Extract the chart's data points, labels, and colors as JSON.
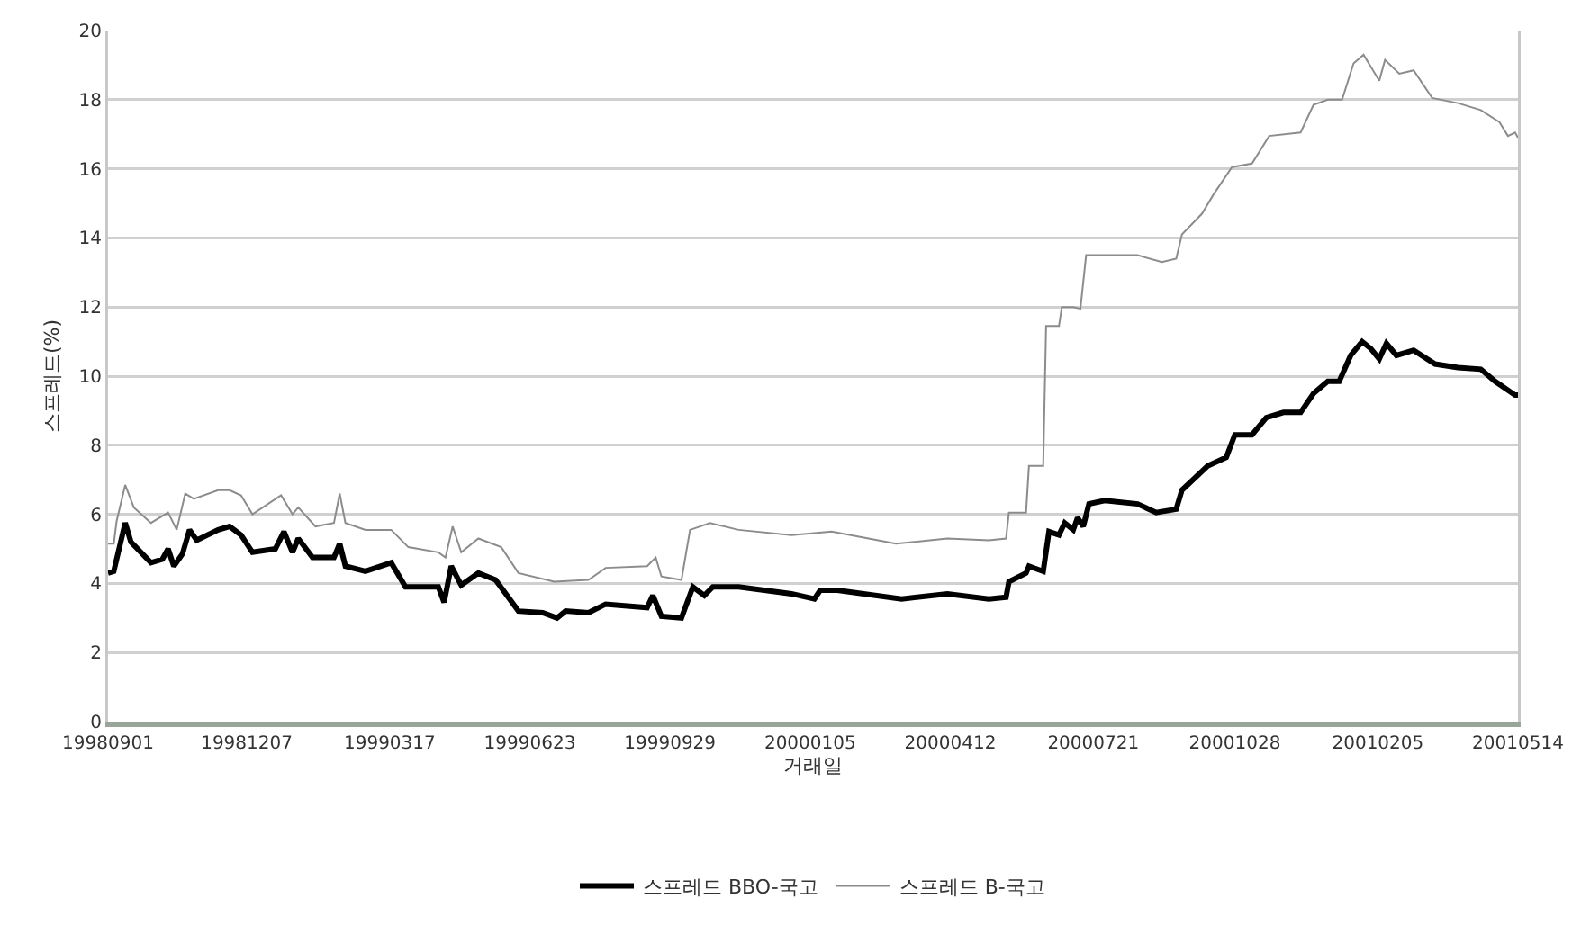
{
  "chart_data": {
    "type": "line",
    "xlabel": "거래일",
    "ylabel": "스프레드(%)",
    "xlim": [
      "1998-09-01",
      "2001-05-14"
    ],
    "xticks": [
      {
        "value": "1998-09-01",
        "label": "19980901"
      },
      {
        "value": "1998-12-07",
        "label": "19981207"
      },
      {
        "value": "1999-03-17",
        "label": "19990317"
      },
      {
        "value": "1999-06-23",
        "label": "19990623"
      },
      {
        "value": "1999-09-29",
        "label": "19990929"
      },
      {
        "value": "2000-01-05",
        "label": "20000105"
      },
      {
        "value": "2000-04-12",
        "label": "20000412"
      },
      {
        "value": "2000-07-21",
        "label": "20000721"
      },
      {
        "value": "2000-10-28",
        "label": "20001028"
      },
      {
        "value": "2001-02-05",
        "label": "20010205"
      },
      {
        "value": "2001-05-14",
        "label": "20010514"
      }
    ],
    "ylim": [
      0,
      20
    ],
    "yticks": [
      0,
      2,
      4,
      6,
      8,
      10,
      12,
      14,
      16,
      18,
      20
    ],
    "grid": "y",
    "legend": "bottom",
    "marker": "none",
    "line_style": "solid",
    "series": [
      {
        "name": "스프레드 BBO-국고",
        "color": "#000000",
        "x": [
          "1998-09-01",
          "1998-09-05",
          "1998-09-13",
          "1998-09-17",
          "1998-10-01",
          "1998-10-09",
          "1998-10-13",
          "1998-10-17",
          "1998-10-23",
          "1998-10-28",
          "1998-11-02",
          "1998-11-17",
          "1998-11-25",
          "1998-12-03",
          "1998-12-11",
          "1998-12-27",
          "1999-01-02",
          "1999-01-08",
          "1999-01-12",
          "1999-01-22",
          "1999-02-06",
          "1999-02-10",
          "1999-02-14",
          "1999-02-28",
          "1999-03-18",
          "1999-03-28",
          "1999-04-20",
          "1999-04-24",
          "1999-04-29",
          "1999-05-06",
          "1999-05-18",
          "1999-05-30",
          "1999-06-15",
          "1999-07-02",
          "1999-07-12",
          "1999-07-18",
          "1999-08-03",
          "1999-08-15",
          "1999-09-13",
          "1999-09-17",
          "1999-09-23",
          "1999-10-07",
          "1999-10-15",
          "1999-10-23",
          "1999-10-29",
          "1999-11-16",
          "1999-12-23",
          "2000-01-08",
          "2000-01-12",
          "2000-01-24",
          "2000-03-09",
          "2000-04-10",
          "2000-05-09",
          "2000-05-21",
          "2000-05-23",
          "2000-06-04",
          "2000-06-06",
          "2000-06-16",
          "2000-06-20",
          "2000-06-27",
          "2000-07-01",
          "2000-07-07",
          "2000-07-10",
          "2000-07-14",
          "2000-07-18",
          "2000-07-29",
          "2000-08-21",
          "2000-09-03",
          "2000-09-17",
          "2000-09-21",
          "2000-10-09",
          "2000-10-22",
          "2000-10-28",
          "2000-11-09",
          "2000-11-19",
          "2000-12-01",
          "2000-12-13",
          "2000-12-22",
          "2001-01-01",
          "2001-01-09",
          "2001-01-17",
          "2001-01-25",
          "2001-01-31",
          "2001-02-06",
          "2001-02-11",
          "2001-02-18",
          "2001-03-02",
          "2001-03-17",
          "2001-04-02",
          "2001-04-18",
          "2001-04-28",
          "2001-05-12",
          "2001-05-14"
        ],
        "values": [
          4.3,
          4.35,
          5.75,
          5.2,
          4.6,
          4.7,
          5.0,
          4.5,
          4.85,
          5.55,
          5.25,
          5.55,
          5.65,
          5.4,
          4.9,
          5.0,
          5.5,
          4.9,
          5.3,
          4.75,
          4.75,
          5.15,
          4.5,
          4.35,
          4.6,
          3.9,
          3.9,
          3.45,
          4.5,
          3.95,
          4.3,
          4.1,
          3.2,
          3.15,
          3.0,
          3.2,
          3.15,
          3.4,
          3.3,
          3.65,
          3.05,
          3.0,
          3.9,
          3.65,
          3.9,
          3.9,
          3.7,
          3.55,
          3.8,
          3.8,
          3.55,
          3.7,
          3.55,
          3.6,
          4.05,
          4.3,
          4.5,
          4.35,
          5.5,
          5.4,
          5.75,
          5.55,
          5.9,
          5.65,
          6.3,
          6.4,
          6.3,
          6.05,
          6.15,
          6.7,
          7.4,
          7.65,
          8.3,
          8.3,
          8.8,
          8.95,
          8.95,
          9.5,
          9.85,
          9.85,
          10.6,
          11.0,
          10.8,
          10.5,
          10.95,
          10.6,
          10.75,
          10.35,
          10.25,
          10.2,
          9.85,
          9.45,
          9.45
        ]
      },
      {
        "name": "스프레드 B-국고",
        "color": "#8c8c8c",
        "x": [
          "1998-09-01",
          "1998-09-05",
          "1998-09-07",
          "1998-09-13",
          "1998-09-19",
          "1998-10-01",
          "1998-10-13",
          "1998-10-19",
          "1998-10-25",
          "1998-10-31",
          "1998-11-17",
          "1998-11-25",
          "1998-12-03",
          "1998-12-11",
          "1998-12-31",
          "1999-01-08",
          "1999-01-12",
          "1999-01-24",
          "1999-02-06",
          "1999-02-10",
          "1999-02-14",
          "1999-02-28",
          "1999-03-18",
          "1999-03-30",
          "1999-04-20",
          "1999-04-25",
          "1999-04-30",
          "1999-05-06",
          "1999-05-18",
          "1999-06-03",
          "1999-06-15",
          "1999-07-10",
          "1999-08-03",
          "1999-08-15",
          "1999-09-13",
          "1999-09-19",
          "1999-09-23",
          "1999-10-07",
          "1999-10-13",
          "1999-10-27",
          "1999-11-16",
          "1999-12-23",
          "2000-01-20",
          "2000-03-05",
          "2000-04-10",
          "2000-05-09",
          "2000-05-21",
          "2000-05-23",
          "2000-06-04",
          "2000-06-06",
          "2000-06-16",
          "2000-06-18",
          "2000-06-27",
          "2000-06-29",
          "2000-07-07",
          "2000-07-12",
          "2000-07-16",
          "2000-07-29",
          "2000-08-21",
          "2000-09-07",
          "2000-09-17",
          "2000-09-21",
          "2000-10-05",
          "2000-10-13",
          "2000-10-26",
          "2000-11-09",
          "2000-11-21",
          "2000-12-13",
          "2000-12-22",
          "2001-01-01",
          "2001-01-11",
          "2001-01-19",
          "2001-01-26",
          "2001-02-06",
          "2001-02-10",
          "2001-02-20",
          "2001-03-02",
          "2001-03-15",
          "2001-04-02",
          "2001-04-18",
          "2001-05-01",
          "2001-05-07",
          "2001-05-12",
          "2001-05-14"
        ],
        "values": [
          5.15,
          5.15,
          5.8,
          6.85,
          6.2,
          5.75,
          6.05,
          5.55,
          6.6,
          6.45,
          6.7,
          6.7,
          6.55,
          6.0,
          6.55,
          6.0,
          6.2,
          5.65,
          5.75,
          6.6,
          5.75,
          5.55,
          5.55,
          5.05,
          4.9,
          4.75,
          5.65,
          4.9,
          5.3,
          5.05,
          4.3,
          4.05,
          4.1,
          4.45,
          4.5,
          4.75,
          4.2,
          4.1,
          5.55,
          5.75,
          5.55,
          5.4,
          5.5,
          5.15,
          5.3,
          5.25,
          5.3,
          6.05,
          6.05,
          7.4,
          7.4,
          11.45,
          11.45,
          12.0,
          12.0,
          11.95,
          13.5,
          13.5,
          13.5,
          13.3,
          13.4,
          14.1,
          14.7,
          15.25,
          16.05,
          16.15,
          16.95,
          17.05,
          17.85,
          18.0,
          18.0,
          19.05,
          19.3,
          18.55,
          19.15,
          18.75,
          18.85,
          18.05,
          17.9,
          17.7,
          17.35,
          16.95,
          17.05,
          16.9
        ]
      }
    ]
  }
}
